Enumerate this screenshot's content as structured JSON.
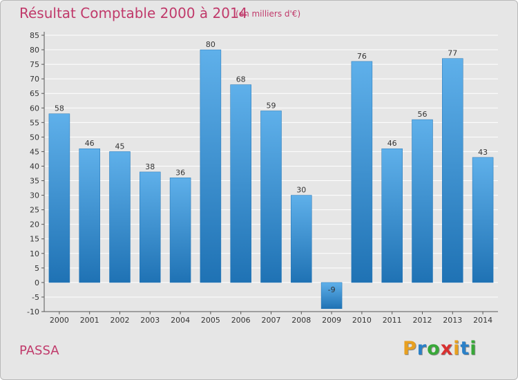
{
  "title": "Résultat Comptable 2000 à 2014",
  "subtitle": "(en milliers d'€)",
  "commune": "PASSA",
  "logo": {
    "letters": [
      "P",
      "r",
      "o",
      "x",
      "i",
      "t",
      "i"
    ],
    "colors": [
      "#e8a020",
      "#2a80c8",
      "#38a838",
      "#d83030",
      "#e8a020",
      "#2a80c8",
      "#38a838"
    ]
  },
  "colors": {
    "title": "#c0396a",
    "bar_light": "#5fb0ea",
    "bar_dark": "#1f72b4",
    "grid": "#ffffff",
    "plot_bg": "#e6e6e6"
  },
  "chart_data": {
    "type": "bar",
    "title": "Résultat Comptable 2000 à 2014",
    "subtitle": "(en milliers d'€)",
    "xlabel": "",
    "ylabel": "",
    "categories": [
      "2000",
      "2001",
      "2002",
      "2003",
      "2004",
      "2005",
      "2006",
      "2007",
      "2008",
      "2009",
      "2010",
      "2011",
      "2012",
      "2013",
      "2014"
    ],
    "values": [
      58,
      46,
      45,
      38,
      36,
      80,
      68,
      59,
      30,
      -9,
      76,
      46,
      56,
      77,
      43
    ],
    "value_labels": [
      "58",
      "46",
      "45",
      "38",
      "36",
      "80",
      "68",
      "59",
      "30",
      "-9",
      "76",
      "46",
      "56",
      "77",
      "43"
    ],
    "ylim": [
      -10,
      85
    ],
    "yticks": [
      "-10",
      "-5",
      "0",
      "5",
      "10",
      "15",
      "20",
      "25",
      "30",
      "35",
      "40",
      "45",
      "50",
      "55",
      "60",
      "65",
      "70",
      "75",
      "80",
      "85"
    ],
    "grid": true
  }
}
